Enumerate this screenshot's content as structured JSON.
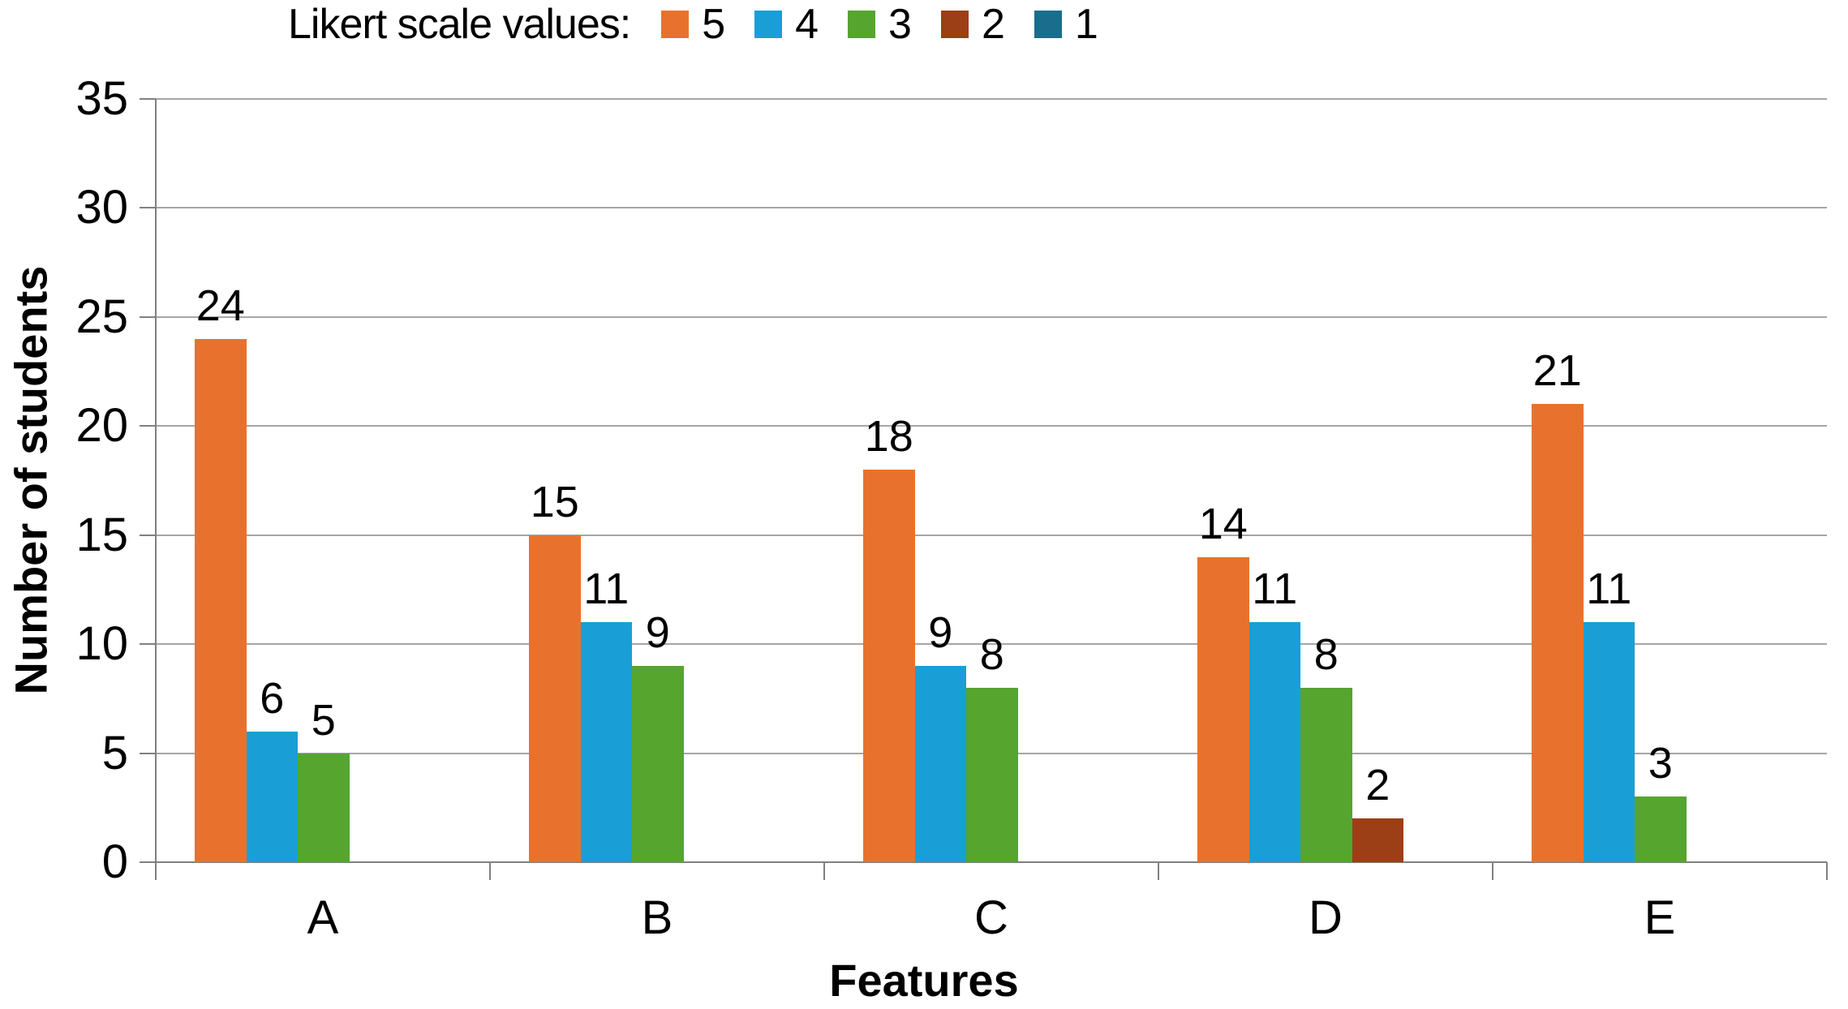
{
  "chart_data": {
    "type": "bar",
    "title": "Likert scale values:",
    "categories": [
      "A",
      "B",
      "C",
      "D",
      "E"
    ],
    "series": [
      {
        "name": "5",
        "color": "#E8722D",
        "values": [
          24,
          15,
          18,
          14,
          21
        ]
      },
      {
        "name": "4",
        "color": "#199FD6",
        "values": [
          6,
          11,
          9,
          11,
          11
        ]
      },
      {
        "name": "3",
        "color": "#55A52F",
        "values": [
          5,
          9,
          8,
          8,
          3
        ]
      },
      {
        "name": "2",
        "color": "#9C3F17",
        "values": [
          0,
          0,
          0,
          2,
          0
        ]
      },
      {
        "name": "1",
        "color": "#1A6D8C",
        "values": [
          0,
          0,
          0,
          0,
          0
        ]
      }
    ],
    "xlabel": "Features",
    "ylabel": "Number of students",
    "ylim": [
      0,
      35
    ],
    "yticks": [
      0,
      5,
      10,
      15,
      20,
      25,
      30,
      35
    ],
    "grid": true,
    "legend_position": "top",
    "data_labels": true
  },
  "colors": {
    "axis": "#808080",
    "gridline": "#A6A6A6",
    "text": "#000000"
  }
}
